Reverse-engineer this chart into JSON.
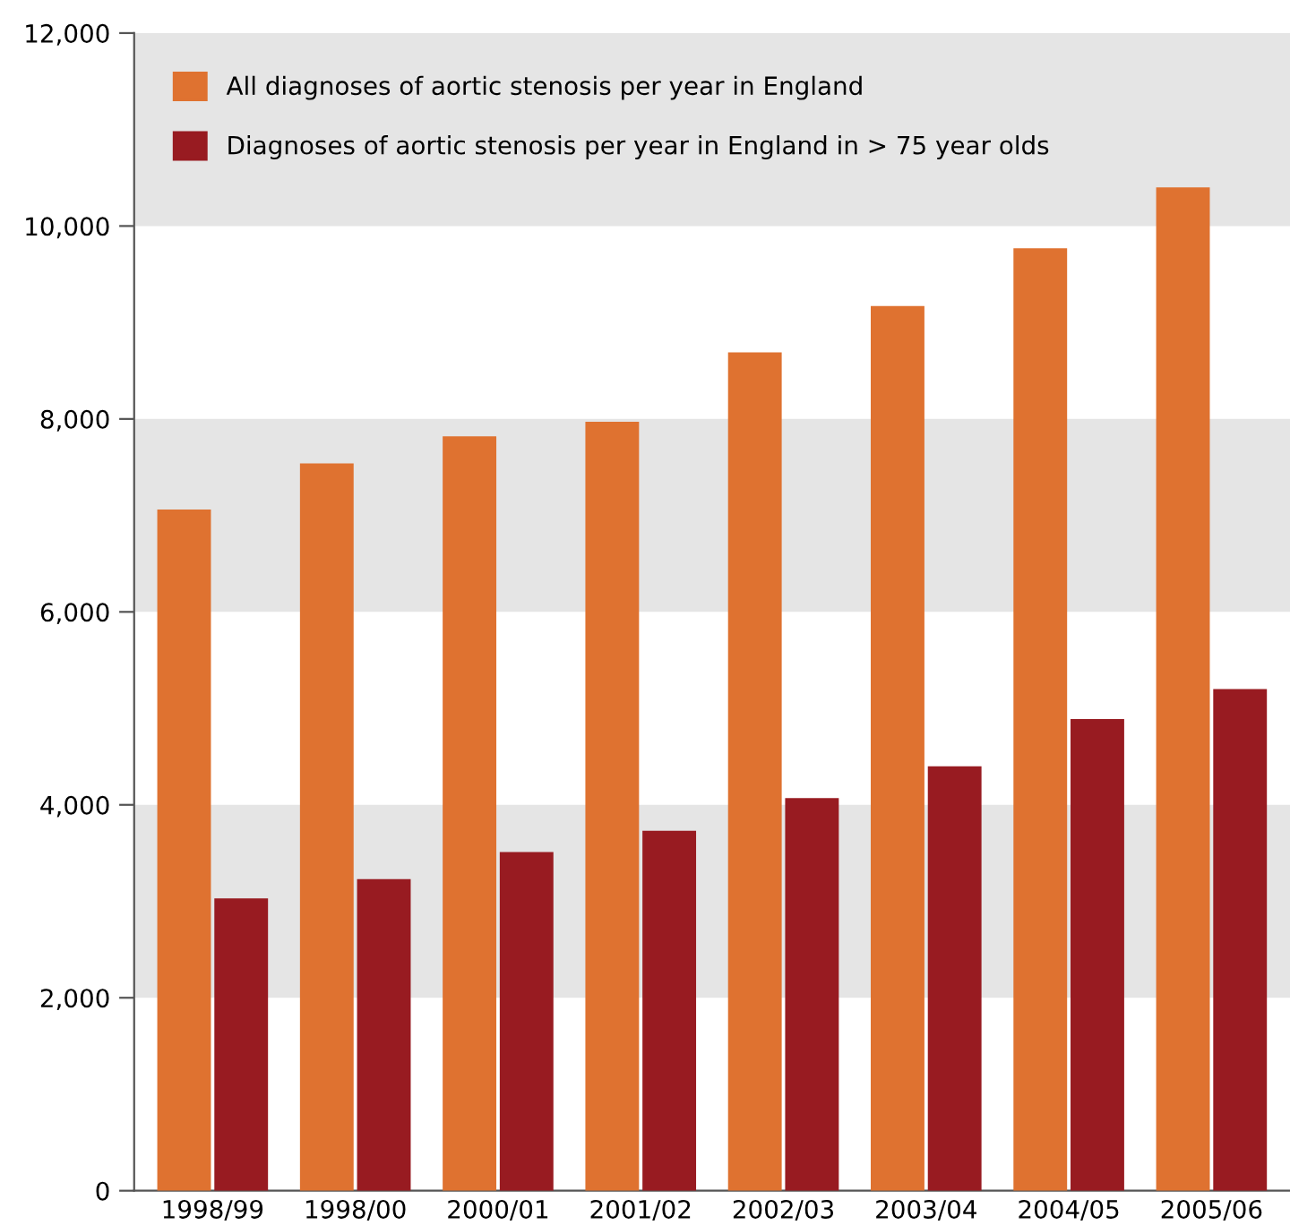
{
  "chart_data": {
    "type": "bar",
    "categories": [
      "1998/99",
      "1998/00",
      "2000/01",
      "2001/02",
      "2002/03",
      "2003/04",
      "2004/05",
      "2005/06"
    ],
    "series": [
      {
        "name": "All diagnoses of aortic stenosis per year in England",
        "color": "#df7230",
        "values": [
          7060,
          7540,
          7820,
          7970,
          8690,
          9170,
          9770,
          10400
        ]
      },
      {
        "name": "Diagnoses of aortic stenosis per year in England in > 75 year olds",
        "color": "#981b21",
        "values": [
          3030,
          3230,
          3510,
          3730,
          4070,
          4400,
          4890,
          5200
        ]
      }
    ],
    "ylim": [
      0,
      12000
    ],
    "yticks": [
      0,
      {
        "value": 2000,
        "label": "2,000"
      },
      {
        "value": 4000,
        "label": "4,000"
      },
      {
        "value": 6000,
        "label": "6,000"
      },
      {
        "value": 8000,
        "label": "8,000"
      },
      {
        "value": 10000,
        "label": "10,000"
      },
      {
        "value": 12000,
        "label": "12,000"
      }
    ],
    "bands": [
      {
        "axis": "y",
        "from": 2000,
        "to": 4000,
        "color": "#e5e5e5"
      },
      {
        "axis": "y",
        "from": 6000,
        "to": 8000,
        "color": "#e5e5e5"
      },
      {
        "axis": "y",
        "from": 10000,
        "to": 12000,
        "color": "#e5e5e5"
      }
    ],
    "legend": "top left"
  }
}
